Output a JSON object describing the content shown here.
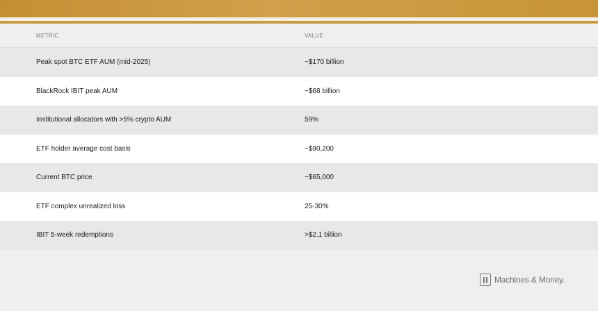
{
  "table": {
    "headers": {
      "metric": "METRIC",
      "value": "VALUE"
    },
    "rows": [
      {
        "metric": "Peak spot BTC ETF AUM (mid-2025)",
        "value": "~$170 billion"
      },
      {
        "metric": "BlackRock IBIT peak AUM",
        "value": "~$68 billion"
      },
      {
        "metric": "Institutional allocators with >5% crypto AUM",
        "value": "59%"
      },
      {
        "metric": "ETF holder average cost basis",
        "value": "~$90,200"
      },
      {
        "metric": "Current BTC price",
        "value": "~$65,000"
      },
      {
        "metric": "ETF complex unrealized loss",
        "value": "25-30%"
      },
      {
        "metric": "IBIT 5-week redemptions",
        "value": ">$2.1 billion"
      }
    ]
  },
  "brand": {
    "name": "Machines & Money.",
    "icon": "machines-money-logo-icon"
  },
  "colors": {
    "accent_gold": "#c99a40",
    "row_shade": "#e8e8e8",
    "row_light": "#ffffff",
    "background": "#efefef"
  }
}
